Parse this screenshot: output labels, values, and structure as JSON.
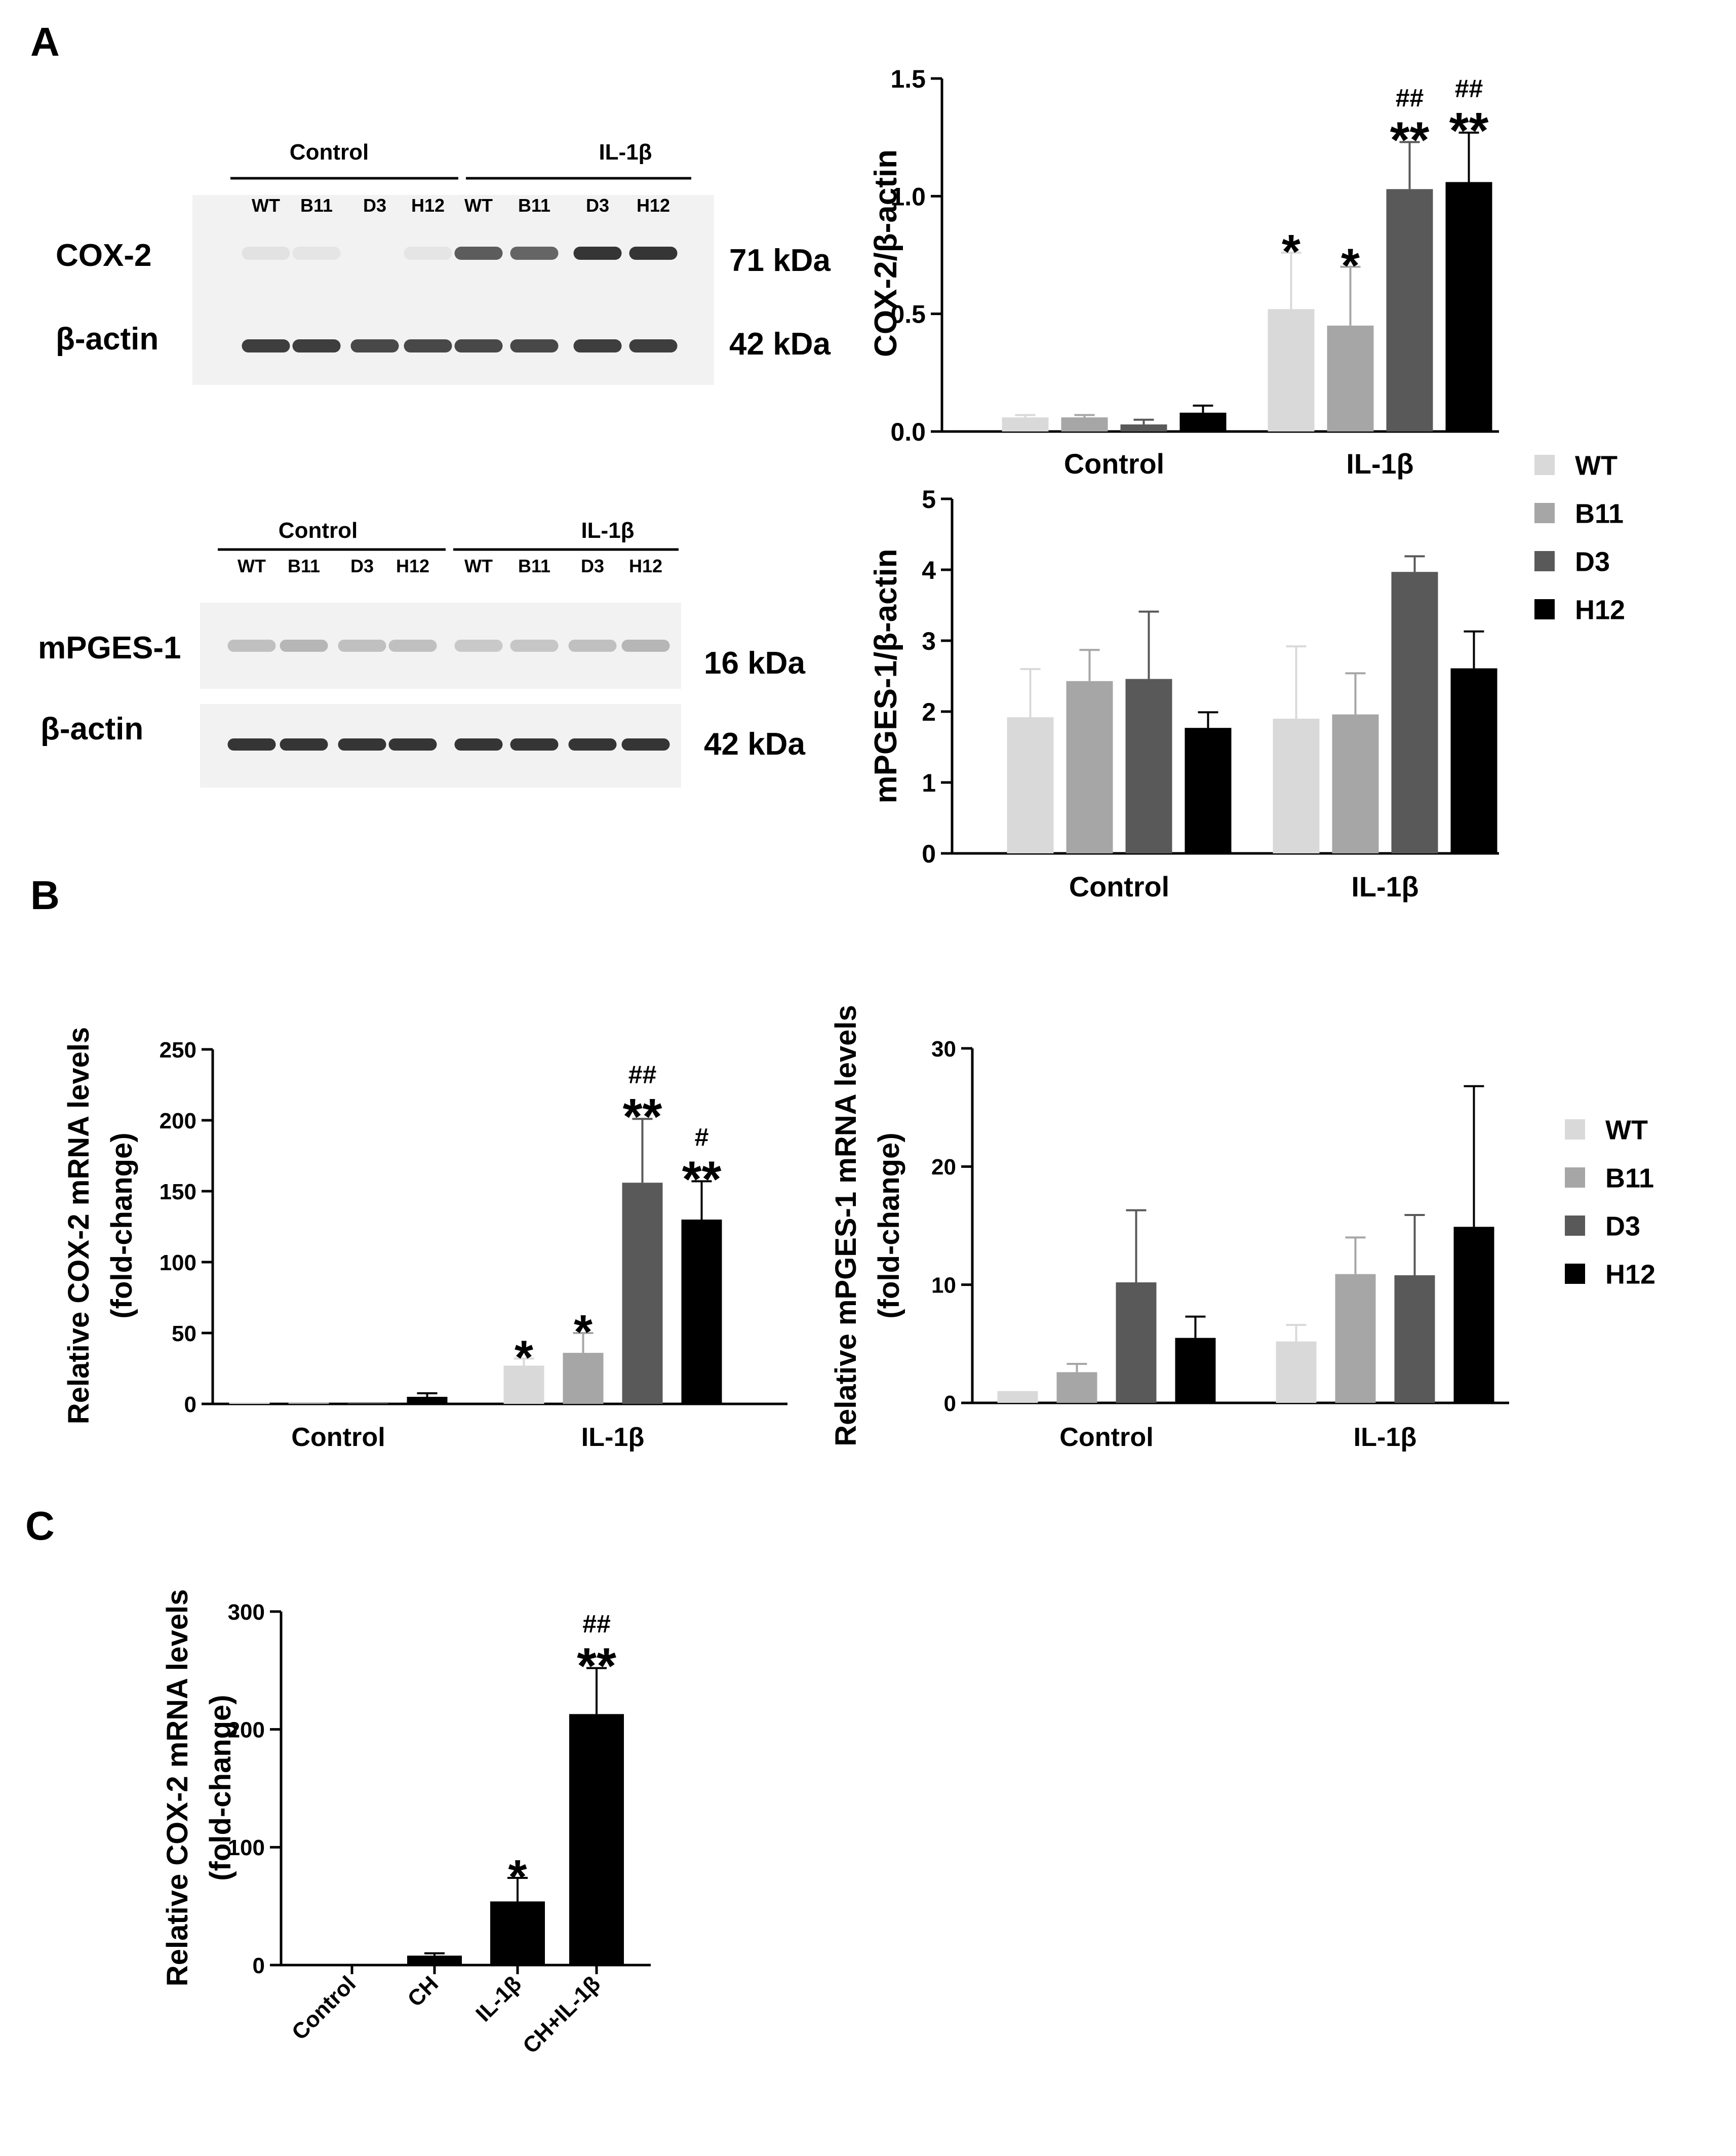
{
  "colors": {
    "WT": "#d9d9d9",
    "B11": "#a6a6a6",
    "D3": "#595959",
    "H12": "#000000",
    "axis": "#000000",
    "blot_bg": "#f2f2f2",
    "band": "#2a2a2a"
  },
  "panel_labels": [
    "A",
    "B",
    "C"
  ],
  "legend": [
    "WT",
    "B11",
    "D3",
    "H12"
  ],
  "blot_top": {
    "groups": [
      "Control",
      "IL-1β"
    ],
    "lanes": [
      "WT",
      "B11",
      "D3",
      "H12",
      "WT",
      "B11",
      "D3",
      "H12"
    ],
    "rows": [
      {
        "label": "COX-2",
        "kda": "71 kDa"
      },
      {
        "label": "β-actin",
        "kda": "42 kDa"
      }
    ],
    "band_intensity": [
      [
        0.08,
        0.06,
        0.0,
        0.06,
        0.75,
        0.7,
        0.95,
        0.95
      ],
      [
        0.9,
        0.9,
        0.85,
        0.85,
        0.85,
        0.85,
        0.9,
        0.9
      ]
    ]
  },
  "blot_bottom": {
    "groups": [
      "Control",
      "IL-1β"
    ],
    "lanes": [
      "WT",
      "B11",
      "D3",
      "H12",
      "WT",
      "B11",
      "D3",
      "H12"
    ],
    "rows": [
      {
        "label": "mPGES-1",
        "kda": "16 kDa"
      },
      {
        "label": "β-actin",
        "kda": "42 kDa"
      }
    ],
    "band_intensity": [
      [
        0.25,
        0.3,
        0.25,
        0.25,
        0.2,
        0.22,
        0.25,
        0.3
      ],
      [
        0.95,
        0.95,
        0.95,
        0.95,
        0.95,
        0.95,
        0.95,
        0.95
      ]
    ]
  },
  "chart_data": [
    {
      "type": "bar",
      "panel": "A",
      "categories": [
        "Control",
        "IL-1β"
      ],
      "ylabel": "COX-2/β-actin",
      "ylim": [
        0,
        1.5
      ],
      "yticks": [
        "0.0",
        "0.5",
        "1.0",
        "1.5"
      ],
      "series": [
        {
          "name": "WT",
          "values": [
            0.06,
            0.52
          ],
          "errors": [
            0.01,
            0.24
          ]
        },
        {
          "name": "B11",
          "values": [
            0.06,
            0.45
          ],
          "errors": [
            0.01,
            0.25
          ]
        },
        {
          "name": "D3",
          "values": [
            0.03,
            1.03
          ],
          "errors": [
            0.02,
            0.2
          ]
        },
        {
          "name": "H12",
          "values": [
            0.08,
            1.06
          ],
          "errors": [
            0.03,
            0.21
          ]
        }
      ],
      "annotations": [
        {
          "series": 0,
          "category": 1,
          "star": "*",
          "hash": ""
        },
        {
          "series": 1,
          "category": 1,
          "star": "*",
          "hash": ""
        },
        {
          "series": 2,
          "category": 1,
          "star": "**",
          "hash": "##"
        },
        {
          "series": 3,
          "category": 1,
          "star": "**",
          "hash": "##"
        }
      ]
    },
    {
      "type": "bar",
      "panel": "A",
      "categories": [
        "Control",
        "IL-1β"
      ],
      "ylabel": "mPGES-1/β-actin",
      "ylim": [
        0,
        5
      ],
      "yticks": [
        "0",
        "1",
        "2",
        "3",
        "4",
        "5"
      ],
      "series": [
        {
          "name": "WT",
          "values": [
            1.92,
            1.9
          ],
          "errors": [
            0.68,
            1.02
          ]
        },
        {
          "name": "B11",
          "values": [
            2.43,
            1.96
          ],
          "errors": [
            0.44,
            0.58
          ]
        },
        {
          "name": "D3",
          "values": [
            2.46,
            3.97
          ],
          "errors": [
            0.95,
            0.22
          ]
        },
        {
          "name": "H12",
          "values": [
            1.77,
            2.61
          ],
          "errors": [
            0.22,
            0.52
          ]
        }
      ],
      "annotations": []
    },
    {
      "type": "bar",
      "panel": "B",
      "categories": [
        "Control",
        "IL-1β"
      ],
      "ylabel": "Relative COX-2 mRNA levels",
      "ylabel2": "(fold-change)",
      "ylim": [
        0,
        250
      ],
      "yticks": [
        "0",
        "50",
        "100",
        "150",
        "200",
        "250"
      ],
      "series": [
        {
          "name": "WT",
          "values": [
            1,
            27
          ],
          "errors": [
            0,
            5
          ]
        },
        {
          "name": "B11",
          "values": [
            1,
            36
          ],
          "errors": [
            0,
            14
          ]
        },
        {
          "name": "D3",
          "values": [
            0.5,
            156
          ],
          "errors": [
            0,
            45
          ]
        },
        {
          "name": "H12",
          "values": [
            5,
            130
          ],
          "errors": [
            2.5,
            27
          ]
        }
      ],
      "annotations": [
        {
          "series": 0,
          "category": 1,
          "star": "*",
          "hash": ""
        },
        {
          "series": 1,
          "category": 1,
          "star": "*",
          "hash": ""
        },
        {
          "series": 2,
          "category": 1,
          "star": "**",
          "hash": "##"
        },
        {
          "series": 3,
          "category": 1,
          "star": "**",
          "hash": "#"
        }
      ]
    },
    {
      "type": "bar",
      "panel": "B",
      "categories": [
        "Control",
        "IL-1β"
      ],
      "ylabel": "Relative mPGES-1 mRNA levels",
      "ylabel2": "(fold-change)",
      "ylim": [
        0,
        30
      ],
      "yticks": [
        "0",
        "10",
        "20",
        "30"
      ],
      "series": [
        {
          "name": "WT",
          "values": [
            1,
            5.2
          ],
          "errors": [
            0,
            1.4
          ]
        },
        {
          "name": "B11",
          "values": [
            2.6,
            10.9
          ],
          "errors": [
            0.7,
            3.1
          ]
        },
        {
          "name": "D3",
          "values": [
            10.2,
            10.8
          ],
          "errors": [
            6.1,
            5.1
          ]
        },
        {
          "name": "H12",
          "values": [
            5.5,
            14.9
          ],
          "errors": [
            1.8,
            11.9
          ]
        }
      ],
      "annotations": []
    },
    {
      "type": "bar",
      "panel": "C",
      "categories": [
        "Control",
        "CH",
        "IL-1β",
        "CH+IL-1β"
      ],
      "ylabel": "Relative  COX-2 mRNA levels",
      "ylabel2": "(fold-change)",
      "ylim": [
        0,
        300
      ],
      "yticks": [
        "0",
        "100",
        "200",
        "300"
      ],
      "series": [
        {
          "name": "",
          "values": [
            1,
            8,
            54,
            213
          ],
          "errors": [
            0,
            2,
            20,
            39
          ]
        }
      ],
      "annotations": [
        {
          "series": 0,
          "category": 2,
          "star": "*",
          "hash": ""
        },
        {
          "series": 0,
          "category": 3,
          "star": "**",
          "hash": "##"
        }
      ]
    }
  ]
}
